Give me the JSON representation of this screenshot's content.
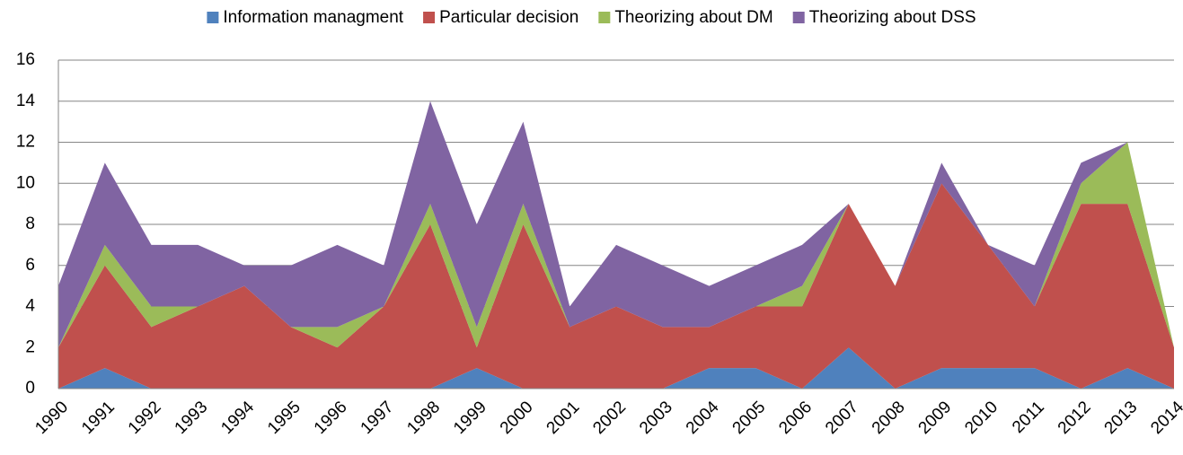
{
  "chart_data": {
    "type": "stacked_area",
    "categories": [
      "1990",
      "1991",
      "1992",
      "1993",
      "1994",
      "1995",
      "1996",
      "1997",
      "1998",
      "1999",
      "2000",
      "2001",
      "2002",
      "2003",
      "2004",
      "2005",
      "2006",
      "2007",
      "2008",
      "2009",
      "2010",
      "2011",
      "2012",
      "2013",
      "2014"
    ],
    "series": [
      {
        "name": "Information managment",
        "color": "#4f81bd",
        "values": [
          0,
          1,
          0,
          0,
          0,
          0,
          0,
          0,
          0,
          1,
          0,
          0,
          0,
          0,
          1,
          1,
          0,
          2,
          0,
          1,
          1,
          1,
          0,
          1,
          0
        ]
      },
      {
        "name": "Particular decision",
        "color": "#c0504d",
        "values": [
          2,
          5,
          3,
          4,
          5,
          3,
          2,
          4,
          8,
          1,
          8,
          3,
          4,
          3,
          2,
          3,
          4,
          7,
          5,
          9,
          6,
          3,
          9,
          8,
          2
        ]
      },
      {
        "name": "Theorizing about DM",
        "color": "#9bbb59",
        "values": [
          0,
          1,
          1,
          0,
          0,
          0,
          1,
          0,
          1,
          1,
          1,
          0,
          0,
          0,
          0,
          0,
          1,
          0,
          0,
          0,
          0,
          0,
          1,
          3,
          0
        ]
      },
      {
        "name": "Theorizing about DSS",
        "color": "#8064a2",
        "values": [
          3,
          4,
          3,
          3,
          1,
          3,
          4,
          2,
          5,
          5,
          4,
          1,
          3,
          3,
          2,
          2,
          2,
          0,
          0,
          1,
          0,
          2,
          1,
          0,
          0
        ]
      }
    ],
    "ylim": [
      0,
      16
    ],
    "yticks": [
      0,
      2,
      4,
      6,
      8,
      10,
      12,
      14,
      16
    ],
    "grid": true,
    "legend": "top"
  }
}
